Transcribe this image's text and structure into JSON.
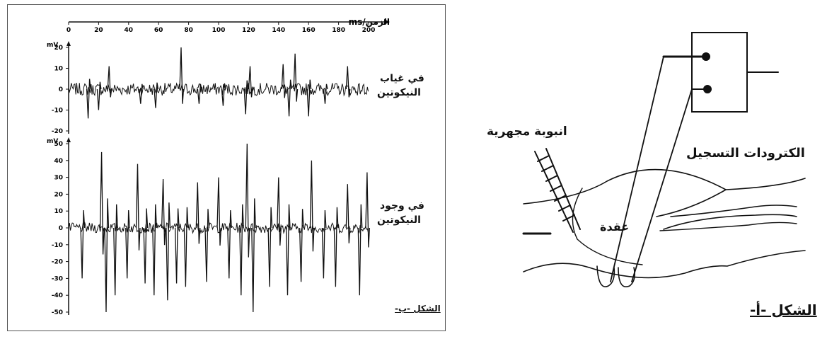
{
  "figure_b": {
    "axis_time_label": "الزمن/ms",
    "x_ticks": [
      "0",
      "20",
      "40",
      "60",
      "80",
      "100",
      "120",
      "140",
      "160",
      "180",
      "200"
    ],
    "upper_unit": "mV",
    "upper_y_ticks": [
      "20",
      "10",
      "0",
      "-10",
      "-20"
    ],
    "lower_unit": "mV",
    "lower_y_ticks": [
      "50",
      "40",
      "30",
      "20",
      "10",
      "0",
      "-10",
      "-20",
      "-30",
      "-40",
      "-50"
    ],
    "upper_label_1": "في غياب",
    "upper_label_2": "النيكوتين",
    "lower_label_1": "في وجود",
    "lower_label_2": "النيكوتين",
    "caption": "الشكل -ب-"
  },
  "figure_a": {
    "label_tube": "انبوبة مجهرية",
    "label_electrodes": "الكترودات التسجيل",
    "label_node": "عقدة",
    "caption": "الشكل -أ-"
  },
  "chart_data": [
    {
      "type": "line",
      "xlabel": "الزمن/ms",
      "ylabel": "mV",
      "xlim": [
        0,
        200
      ],
      "ylim": [
        -20,
        20
      ],
      "series": [
        {
          "name": "في غياب النيكوتين",
          "x": [
            13,
            20,
            27,
            48,
            58,
            75,
            87,
            103,
            118,
            121,
            143,
            147,
            151,
            160,
            171,
            186
          ],
          "y": [
            -14,
            -10,
            11,
            -7,
            -9,
            20,
            -7,
            -8,
            -12,
            11,
            12,
            -13,
            17,
            -13,
            -7,
            11
          ]
        }
      ]
    },
    {
      "type": "line",
      "xlabel": "الزمن/ms",
      "ylabel": "mV",
      "xlim": [
        0,
        200
      ],
      "ylim": [
        -50,
        50
      ],
      "series": [
        {
          "name": "في وجود النيكوتين",
          "x": [
            9,
            22,
            25,
            31,
            39,
            46,
            51,
            57,
            63,
            66,
            72,
            78,
            86,
            92,
            100,
            107,
            115,
            119,
            123,
            134,
            140,
            146,
            155,
            162,
            170,
            178,
            186,
            194,
            199
          ],
          "y": [
            -30,
            45,
            -50,
            -40,
            -30,
            38,
            -33,
            -40,
            29,
            -43,
            -33,
            -35,
            27,
            -32,
            30,
            -30,
            -40,
            50,
            -50,
            -35,
            30,
            -40,
            -32,
            40,
            -30,
            -35,
            26,
            -40,
            33
          ]
        }
      ]
    }
  ]
}
